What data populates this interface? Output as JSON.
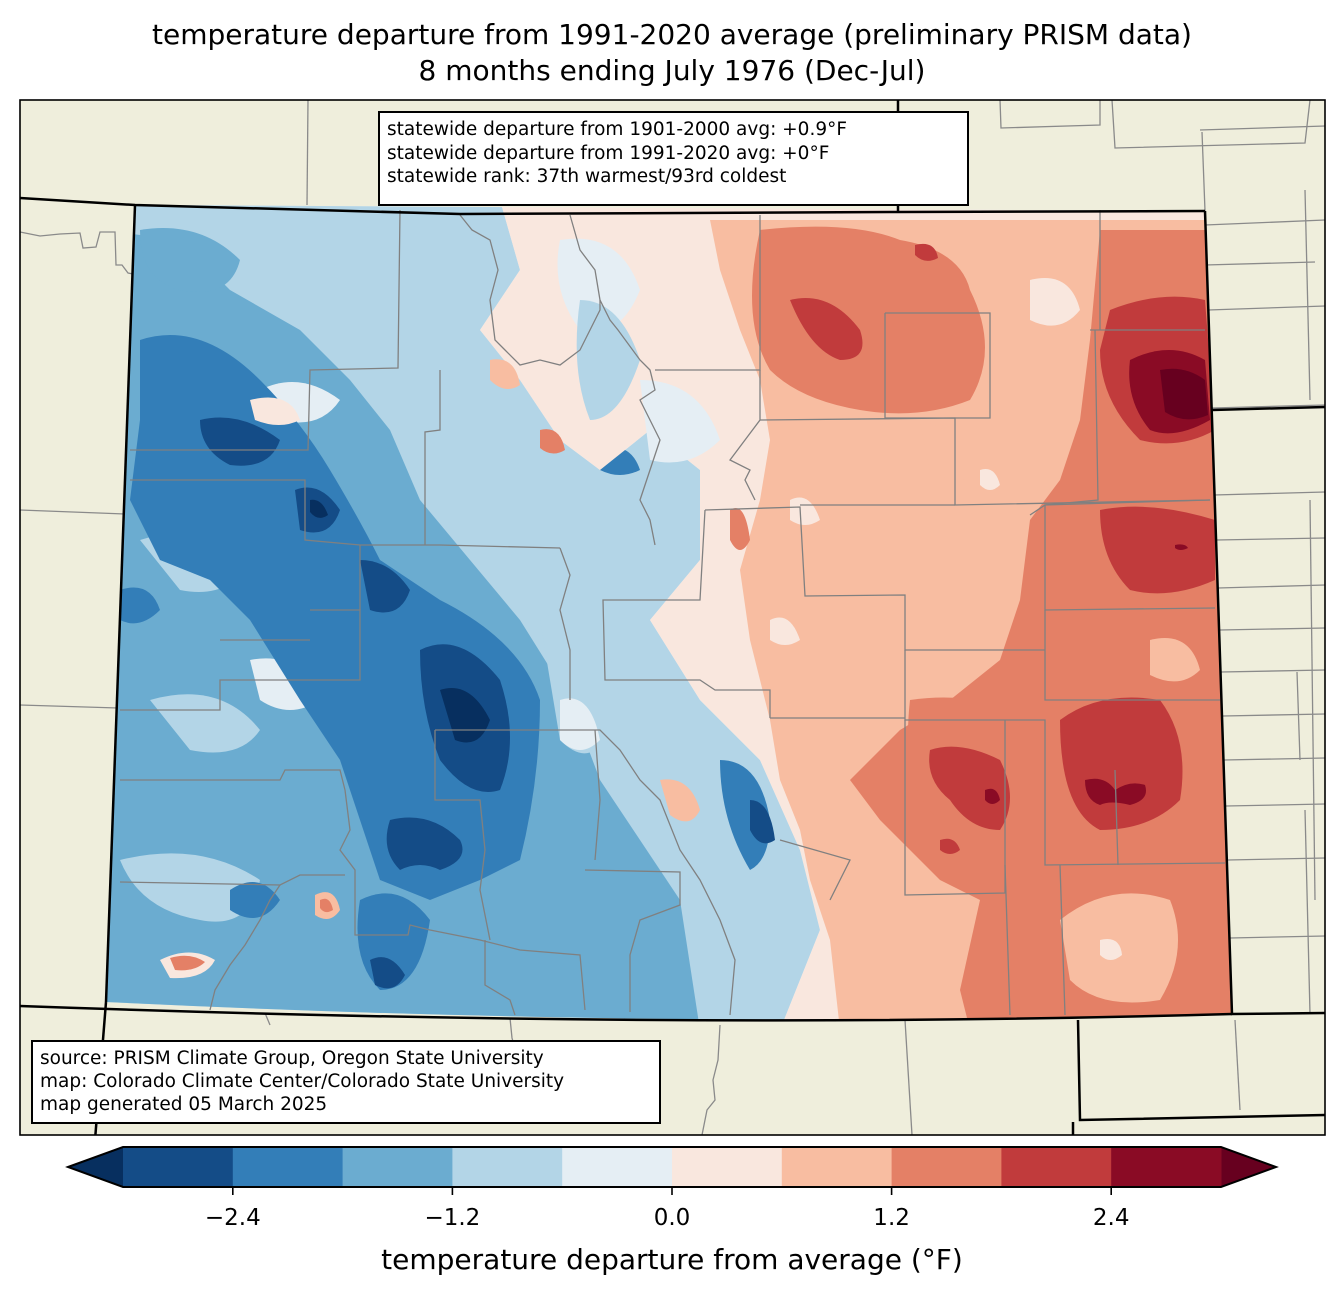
{
  "title": {
    "line1": "temperature departure from 1991-2020 average (preliminary PRISM data)",
    "line2": "8 months ending July 1976 (Dec-Jul)"
  },
  "stats_box": {
    "line1": "statewide departure from 1901-2000 avg: +0.9°F",
    "line2": "statewide departure from 1991-2020 avg: +0°F",
    "line3": "statewide rank: 37th warmest/93rd coldest"
  },
  "source_box": {
    "line1": "source: PRISM Climate Group, Oregon State University",
    "line2": "map: Colorado Climate Center/Colorado State University",
    "line3": "map generated 05 March 2025"
  },
  "colors": {
    "background_land": "#efeedc",
    "county_lines": "#808080",
    "state_lines": "#000000"
  },
  "chart_data": {
    "type": "heatmap",
    "title": "temperature departure from 1991-2020 average (preliminary PRISM data) — 8 months ending July 1976 (Dec-Jul)",
    "region": "Colorado",
    "units": "°F",
    "colorbar": {
      "label": "temperature departure from average (°F)",
      "levels": [
        -3.0,
        -2.4,
        -1.8,
        -1.2,
        -0.6,
        0.0,
        0.6,
        1.2,
        1.8,
        2.4,
        3.0
      ],
      "colors": [
        "#144c87",
        "#337eb8",
        "#6bacd0",
        "#b3d5e7",
        "#e5eef4",
        "#f9e7de",
        "#f8bda1",
        "#e48066",
        "#c13b3c",
        "#8a0b25"
      ],
      "extend_low_color": "#072f5f",
      "extend_high_color": "#67001f",
      "ticks": [
        -2.4,
        -1.2,
        0.0,
        1.2,
        2.4
      ],
      "tick_labels": [
        "−2.4",
        "−1.2",
        "0.0",
        "1.2",
        "2.4"
      ],
      "extend": "both"
    },
    "pattern_summary": {
      "west": "below average (mostly -0.6 to -2.4°F, locally below -3.0°F in the San Juan Mountains)",
      "central": "near average (-0.6 to +0.6°F)",
      "east": "above average (+0.6 to +2.4°F, locally above +3.0°F near the northeast border)"
    },
    "statewide_departure_1901_2000": 0.9,
    "statewide_departure_1991_2020": 0,
    "rank_warmest": 37,
    "rank_coldest": 93
  }
}
